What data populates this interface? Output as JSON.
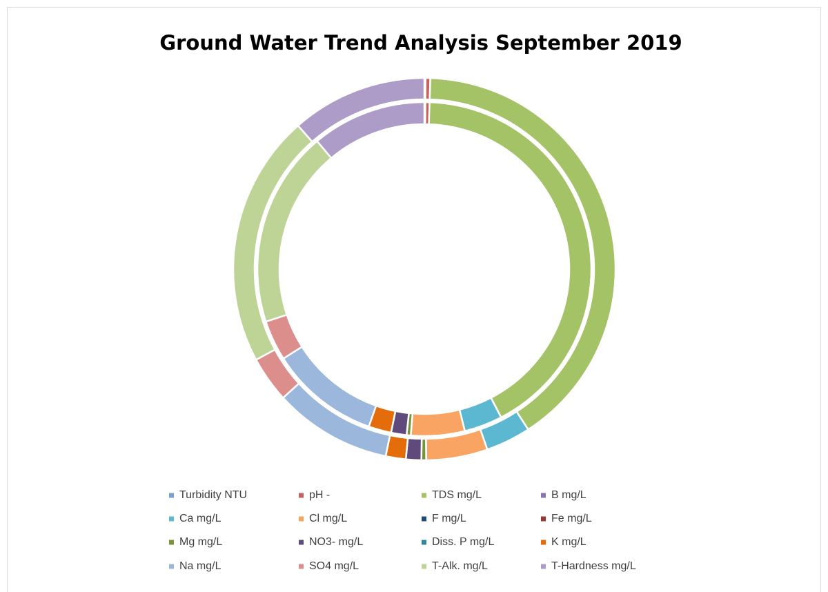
{
  "chart_data": {
    "type": "doughnut",
    "title": "Ground Water Trend Analysis September 2019",
    "categories": [
      "Turbidity NTU",
      "pH -",
      "TDS mg/L",
      "B mg/L",
      "Ca mg/L",
      "Cl mg/L",
      "F mg/L",
      "Fe mg/L",
      "Mg mg/L",
      "NO3- mg/L",
      "Diss. P mg/L",
      "K mg/L",
      "Na mg/L",
      "SO4 mg/L",
      "T-Alk. mg/L",
      "T-Hardness mg/L"
    ],
    "colors": [
      "#7a9fd0",
      "#c9615e",
      "#a4c266",
      "#8d72b0",
      "#5bb8d0",
      "#f9a463",
      "#1f497d",
      "#953735",
      "#77933c",
      "#604a7b",
      "#31859c",
      "#e46c0a",
      "#9bb7dc",
      "#dc8e8c",
      "#bdd496",
      "#ad9bc8"
    ],
    "series": [
      {
        "values": [
          0.1,
          0.4,
          41.9,
          0,
          3.7,
          5.2,
          0,
          0,
          0.4,
          1.5,
          0,
          2.2,
          10.6,
          3.9,
          19,
          11.1
        ]
      },
      {
        "values": [
          0.1,
          0.4,
          40.4,
          0,
          3.8,
          5.2,
          0,
          0,
          0.4,
          1.3,
          0,
          1.7,
          10,
          3.9,
          21.4,
          11.5
        ]
      }
    ],
    "legend": "bottom"
  }
}
